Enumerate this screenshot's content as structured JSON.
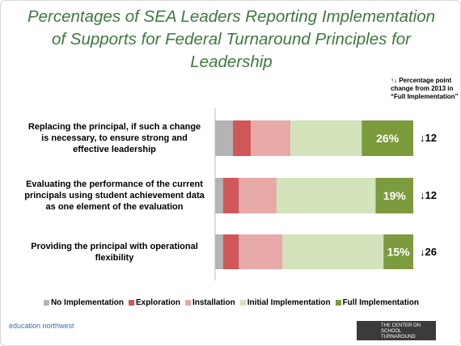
{
  "chart_data": {
    "type": "stacked_barh",
    "title": "Percentages of SEA Leaders Reporting Implementation of Supports for Federal Turnaround Principles for Leadership",
    "categories": [
      "Replacing the principal, if such a change is necessary, to ensure strong and effective leadership",
      "Evaluating the performance of the current principals using student achievement data as one element of the evaluation",
      "Providing the principal with operational flexibility"
    ],
    "series": [
      {
        "name": "No Implementation",
        "color": "#b4b4b4",
        "values": [
          9,
          4,
          4
        ]
      },
      {
        "name": "Exploration",
        "color": "#d05858",
        "values": [
          9,
          8,
          8
        ]
      },
      {
        "name": "Installation",
        "color": "#e8a9a9",
        "values": [
          20,
          19,
          22
        ]
      },
      {
        "name": "Initial Implementation",
        "color": "#d3e3bb",
        "values": [
          36,
          50,
          51
        ]
      },
      {
        "name": "Full Implementation",
        "color": "#7c9b3d",
        "values": [
          26,
          19,
          15
        ],
        "value_labels": [
          "26%",
          "19%",
          "15%"
        ]
      }
    ],
    "xlim": [
      0,
      100
    ],
    "change_note": "↑↓ Percentage point change from 2013 in “Full Implementation”",
    "changes": [
      "↓12",
      "↓12",
      "↓26"
    ],
    "logos": [
      "education northwest",
      "THE CENTER ON SCHOOL TURNAROUND"
    ]
  }
}
